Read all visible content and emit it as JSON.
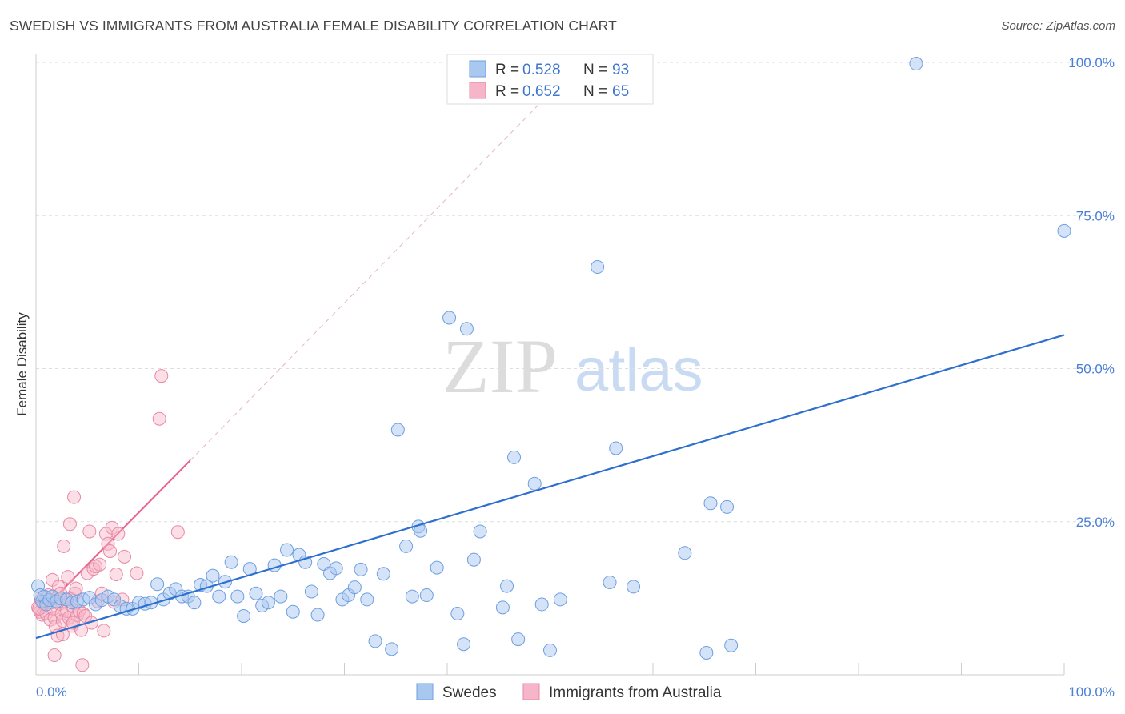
{
  "title": "SWEDISH VS IMMIGRANTS FROM AUSTRALIA FEMALE DISABILITY CORRELATION CHART",
  "source": "Source: ZipAtlas.com",
  "watermark": {
    "zip": "ZIP",
    "atlas": "atlas"
  },
  "colors": {
    "blue_fill": "#a9c8f0",
    "blue_stroke": "#6e9fe0",
    "blue_line": "#2d6fcf",
    "pink_fill": "#f6b5c8",
    "pink_stroke": "#e889a6",
    "pink_line": "#e8658e",
    "label_blue": "#4a7fd6"
  },
  "legend": {
    "row1": {
      "r_label": "R = ",
      "r_value": "0.528",
      "n_label": "N = ",
      "n_value": "93"
    },
    "row2": {
      "r_label": "R = ",
      "r_value": "0.652",
      "n_label": "N = ",
      "n_value": "65"
    }
  },
  "bottom_legend": {
    "swedes": "Swedes",
    "australia": "Immigrants from Australia"
  },
  "chart_data": {
    "type": "scatter",
    "title": "SWEDISH VS IMMIGRANTS FROM AUSTRALIA FEMALE DISABILITY CORRELATION CHART",
    "xlabel": "",
    "ylabel": "Female Disability",
    "xlim": [
      0,
      100
    ],
    "ylim": [
      0,
      100
    ],
    "x_tick_labels": [
      "0.0%",
      "100.0%"
    ],
    "y_tick_labels": [
      "25.0%",
      "50.0%",
      "75.0%",
      "100.0%"
    ],
    "y_ticks": [
      25,
      50,
      75,
      100
    ],
    "grid": "horizontal dashed",
    "legend_position": "top-center",
    "series": [
      {
        "name": "Swedes",
        "r": 0.528,
        "n": 93,
        "trend": {
          "x": [
            0,
            100
          ],
          "y": [
            6.0,
            55.5
          ]
        },
        "points": [
          [
            0.2,
            14.5
          ],
          [
            0.4,
            13.0
          ],
          [
            0.6,
            12.0
          ],
          [
            0.8,
            12.8
          ],
          [
            1.0,
            11.5
          ],
          [
            1.3,
            12.2
          ],
          [
            1.6,
            12.8
          ],
          [
            2.0,
            12.0
          ],
          [
            2.4,
            12.5
          ],
          [
            3.0,
            12.3
          ],
          [
            3.5,
            11.8
          ],
          [
            4.0,
            12.0
          ],
          [
            4.6,
            12.3
          ],
          [
            5.2,
            12.6
          ],
          [
            5.8,
            11.5
          ],
          [
            6.4,
            12.2
          ],
          [
            7.0,
            12.8
          ],
          [
            7.6,
            12.3
          ],
          [
            8.2,
            11.2
          ],
          [
            8.8,
            10.8
          ],
          [
            9.4,
            10.8
          ],
          [
            10.0,
            11.8
          ],
          [
            10.6,
            11.6
          ],
          [
            11.2,
            11.8
          ],
          [
            11.8,
            14.8
          ],
          [
            12.4,
            12.3
          ],
          [
            13.0,
            13.3
          ],
          [
            13.6,
            14.0
          ],
          [
            14.2,
            12.8
          ],
          [
            14.8,
            12.8
          ],
          [
            15.4,
            11.8
          ],
          [
            16.0,
            14.7
          ],
          [
            16.6,
            14.5
          ],
          [
            17.2,
            16.2
          ],
          [
            17.8,
            12.8
          ],
          [
            18.4,
            15.2
          ],
          [
            19.0,
            18.4
          ],
          [
            19.6,
            12.8
          ],
          [
            20.2,
            9.6
          ],
          [
            20.8,
            17.3
          ],
          [
            21.4,
            13.3
          ],
          [
            22.0,
            11.3
          ],
          [
            22.6,
            11.8
          ],
          [
            23.2,
            17.9
          ],
          [
            23.8,
            12.8
          ],
          [
            24.4,
            20.4
          ],
          [
            25.0,
            10.3
          ],
          [
            25.6,
            19.6
          ],
          [
            26.2,
            18.4
          ],
          [
            26.8,
            13.6
          ],
          [
            27.4,
            9.8
          ],
          [
            28.0,
            18.1
          ],
          [
            28.6,
            16.6
          ],
          [
            29.2,
            17.4
          ],
          [
            29.8,
            12.3
          ],
          [
            30.4,
            13.0
          ],
          [
            31.0,
            14.3
          ],
          [
            31.6,
            17.2
          ],
          [
            32.2,
            12.3
          ],
          [
            33.0,
            5.5
          ],
          [
            33.8,
            16.5
          ],
          [
            34.6,
            4.2
          ],
          [
            35.2,
            40.0
          ],
          [
            36.0,
            21.0
          ],
          [
            36.6,
            12.8
          ],
          [
            37.2,
            24.2
          ],
          [
            37.4,
            23.5
          ],
          [
            38.0,
            13.0
          ],
          [
            39.0,
            17.5
          ],
          [
            40.2,
            58.3
          ],
          [
            41.0,
            10.0
          ],
          [
            41.6,
            5.0
          ],
          [
            41.9,
            56.5
          ],
          [
            42.6,
            18.8
          ],
          [
            43.2,
            23.4
          ],
          [
            45.4,
            11.0
          ],
          [
            45.8,
            14.5
          ],
          [
            46.5,
            35.5
          ],
          [
            46.9,
            5.8
          ],
          [
            48.5,
            31.2
          ],
          [
            49.2,
            11.5
          ],
          [
            50.0,
            4.0
          ],
          [
            51.0,
            12.3
          ],
          [
            54.6,
            66.6
          ],
          [
            55.8,
            15.1
          ],
          [
            56.4,
            37.0
          ],
          [
            58.1,
            14.4
          ],
          [
            63.1,
            19.9
          ],
          [
            65.2,
            3.6
          ],
          [
            65.6,
            28.0
          ],
          [
            67.2,
            27.4
          ],
          [
            67.6,
            4.8
          ],
          [
            85.6,
            99.8
          ],
          [
            100.0,
            72.5
          ]
        ]
      },
      {
        "name": "Immigrants from Australia",
        "r": 0.652,
        "n": 65,
        "trend": {
          "x": [
            0,
            15.0
          ],
          "y": [
            9.5,
            35.0
          ],
          "extended": {
            "x": [
              15.0,
              50.0
            ],
            "y": [
              35.0,
              95.0
            ]
          }
        },
        "points": [
          [
            0.2,
            11.0
          ],
          [
            0.4,
            10.3
          ],
          [
            0.5,
            12.2
          ],
          [
            0.6,
            9.8
          ],
          [
            0.8,
            11.6
          ],
          [
            1.0,
            10.0
          ],
          [
            1.2,
            13.0
          ],
          [
            1.4,
            9.0
          ],
          [
            1.5,
            11.8
          ],
          [
            1.6,
            15.5
          ],
          [
            1.7,
            10.8
          ],
          [
            1.8,
            9.3
          ],
          [
            1.9,
            7.9
          ],
          [
            2.0,
            12.5
          ],
          [
            2.1,
            6.4
          ],
          [
            2.2,
            14.4
          ],
          [
            2.3,
            11.6
          ],
          [
            2.4,
            13.3
          ],
          [
            2.5,
            10.0
          ],
          [
            2.6,
            8.8
          ],
          [
            2.7,
            21.0
          ],
          [
            2.9,
            12.3
          ],
          [
            3.0,
            10.4
          ],
          [
            3.1,
            16.0
          ],
          [
            3.2,
            9.3
          ],
          [
            3.3,
            24.6
          ],
          [
            3.4,
            12.4
          ],
          [
            3.5,
            8.0
          ],
          [
            3.6,
            11.2
          ],
          [
            3.7,
            29.0
          ],
          [
            3.8,
            13.3
          ],
          [
            3.9,
            14.1
          ],
          [
            4.0,
            9.7
          ],
          [
            4.2,
            10.5
          ],
          [
            4.4,
            7.3
          ],
          [
            4.6,
            10.0
          ],
          [
            4.8,
            9.6
          ],
          [
            5.0,
            16.6
          ],
          [
            5.2,
            23.4
          ],
          [
            5.4,
            8.5
          ],
          [
            5.6,
            17.3
          ],
          [
            5.8,
            17.7
          ],
          [
            6.0,
            12.0
          ],
          [
            6.2,
            18.0
          ],
          [
            6.4,
            13.3
          ],
          [
            6.6,
            7.2
          ],
          [
            6.8,
            23.0
          ],
          [
            7.0,
            21.4
          ],
          [
            7.2,
            20.2
          ],
          [
            7.4,
            24.0
          ],
          [
            7.6,
            11.9
          ],
          [
            7.8,
            16.4
          ],
          [
            8.0,
            23.0
          ],
          [
            8.4,
            12.3
          ],
          [
            8.6,
            19.3
          ],
          [
            9.8,
            16.6
          ],
          [
            12.0,
            41.8
          ],
          [
            12.2,
            48.8
          ],
          [
            13.8,
            23.3
          ],
          [
            1.8,
            3.2
          ],
          [
            4.5,
            1.6
          ],
          [
            2.6,
            6.6
          ],
          [
            3.6,
            8.5
          ],
          [
            1.0,
            12.6
          ],
          [
            0.3,
            10.8
          ]
        ]
      }
    ]
  }
}
